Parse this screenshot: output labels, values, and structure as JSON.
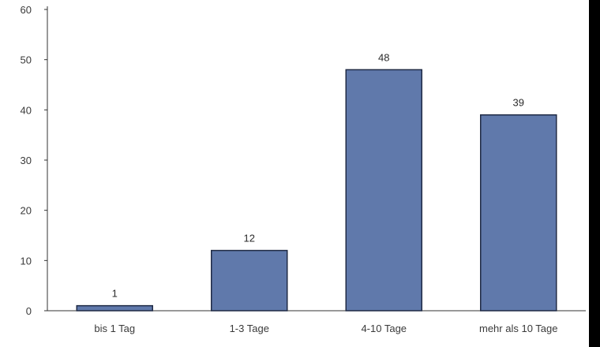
{
  "chart_data": {
    "type": "bar",
    "title": "",
    "xlabel": "",
    "ylabel": "",
    "categories": [
      "bis 1 Tag",
      "1-3 Tage",
      "4-10 Tage",
      "mehr als 10 Tage"
    ],
    "values": [
      1,
      12,
      48,
      39
    ],
    "data_labels": [
      "1",
      "12",
      "48",
      "39"
    ],
    "ylim": [
      0,
      60
    ],
    "yticks": [
      0,
      10,
      20,
      30,
      40,
      50,
      60
    ],
    "ytick_labels": [
      "0",
      "10",
      "20",
      "30",
      "40",
      "50",
      "60"
    ],
    "grid": false,
    "legend": "none",
    "colors": {
      "bar_fill": "#6079ab",
      "bar_stroke": "#1f2a44",
      "axis": "#333333",
      "frame_side": "#000000"
    }
  }
}
